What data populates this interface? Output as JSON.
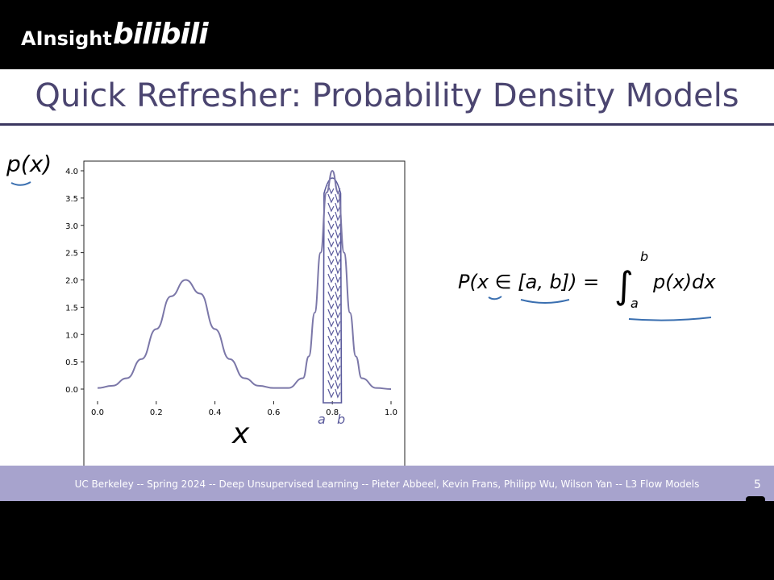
{
  "header": {
    "brand": "AInsight",
    "watermark": "bilibili"
  },
  "slide": {
    "title": "Quick Refresher: Probability Density Models",
    "ylabel": "p(x)",
    "xlabel": "x",
    "annotation_a": "a",
    "annotation_b": "b",
    "equation": {
      "lhs": "P(x ∈ [a, b]) =",
      "integral": "∫",
      "upper": "b",
      "lower": "a",
      "integrand": "p(x)dx"
    }
  },
  "footer": {
    "text": "UC Berkeley -- Spring 2024 -- Deep Unsupervised Learning -- Pieter Abbeel, Kevin Frans, Philipp Wu, Wilson Yan -- L3 Flow Models",
    "page": "5"
  },
  "chart_data": {
    "type": "line",
    "xlim": [
      0.0,
      1.0
    ],
    "ylim": [
      0.0,
      4.0
    ],
    "x_ticks": [
      "0.0",
      "0.2",
      "0.4",
      "0.6",
      "0.8",
      "1.0"
    ],
    "y_ticks": [
      "0.0",
      "0.5",
      "1.0",
      "1.5",
      "2.0",
      "2.5",
      "3.0",
      "3.5",
      "4.0"
    ],
    "series": [
      {
        "color": "#7b77a8",
        "x": [
          0.0,
          0.05,
          0.1,
          0.15,
          0.2,
          0.25,
          0.3,
          0.35,
          0.4,
          0.45,
          0.5,
          0.55,
          0.6,
          0.65,
          0.7,
          0.72,
          0.74,
          0.76,
          0.78,
          0.8,
          0.82,
          0.84,
          0.86,
          0.88,
          0.9,
          0.95,
          1.0
        ],
        "y": [
          0.02,
          0.06,
          0.2,
          0.55,
          1.1,
          1.7,
          2.0,
          1.75,
          1.1,
          0.55,
          0.2,
          0.06,
          0.02,
          0.02,
          0.2,
          0.6,
          1.4,
          2.5,
          3.6,
          4.0,
          3.6,
          2.5,
          1.4,
          0.6,
          0.2,
          0.02,
          0.0
        ]
      }
    ],
    "highlight_interval": [
      0.78,
      0.82
    ]
  }
}
